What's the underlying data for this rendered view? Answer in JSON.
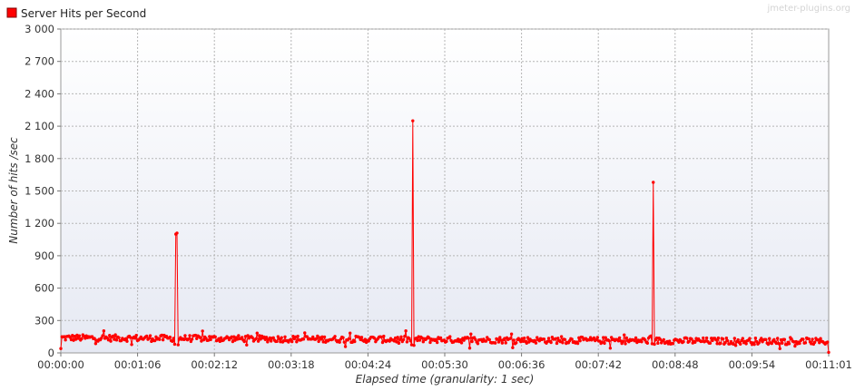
{
  "watermark": "jmeter-plugins.org",
  "legend": {
    "label": "Server Hits per Second",
    "color": "#ff0000"
  },
  "chart_data": {
    "type": "line",
    "title": "",
    "xlabel": "Elapsed time (granularity: 1 sec)",
    "ylabel": "Number of hits /sec",
    "xlim_seconds": [
      0,
      661
    ],
    "ylim": [
      0,
      3000
    ],
    "x_ticks": [
      "00:00:00",
      "00:01:06",
      "00:02:12",
      "00:03:18",
      "00:04:24",
      "00:05:30",
      "00:06:36",
      "00:07:42",
      "00:08:48",
      "00:09:54",
      "00:11:01"
    ],
    "y_ticks": [
      "0",
      "300",
      "600",
      "900",
      "1 200",
      "1 500",
      "1 800",
      "2 100",
      "2 400",
      "2 700",
      "3 000"
    ],
    "grid": true,
    "legend_position": "top-left",
    "series": [
      {
        "name": "Server Hits per Second",
        "color": "#ff0000",
        "baseline_start": 140,
        "baseline_end": 105,
        "noise": 30,
        "first_point": {
          "x": 0,
          "y": 40
        },
        "last_point": {
          "x": 661,
          "y": 5
        },
        "spikes": [
          {
            "x": 99,
            "y": 1100
          },
          {
            "x": 100,
            "y": 1110
          },
          {
            "x": 303,
            "y": 2150
          },
          {
            "x": 510,
            "y": 1580
          }
        ],
        "dips": [
          {
            "x": 98,
            "y": 80
          },
          {
            "x": 101,
            "y": 75
          },
          {
            "x": 302,
            "y": 75
          },
          {
            "x": 304,
            "y": 70
          },
          {
            "x": 509,
            "y": 85
          },
          {
            "x": 511,
            "y": 80
          }
        ]
      }
    ]
  }
}
